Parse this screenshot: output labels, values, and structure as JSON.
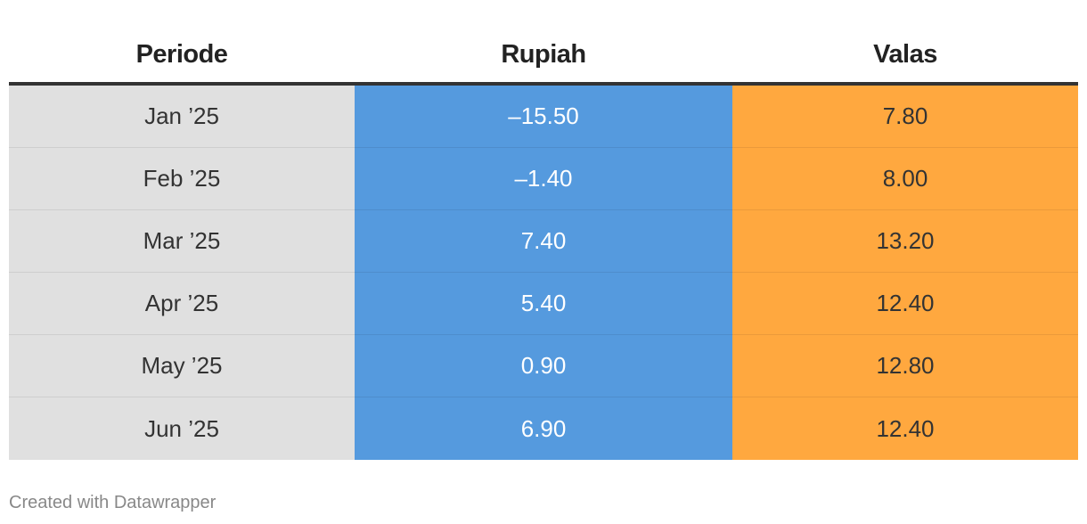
{
  "chart_data": {
    "type": "table",
    "columns": [
      "Periode",
      "Rupiah",
      "Valas"
    ],
    "rows": [
      {
        "periode": "Jan ’25",
        "rupiah": "–15.50",
        "valas": "7.80"
      },
      {
        "periode": "Feb ’25",
        "rupiah": "–1.40",
        "valas": "8.00"
      },
      {
        "periode": "Mar ’25",
        "rupiah": "7.40",
        "valas": "13.20"
      },
      {
        "periode": "Apr ’25",
        "rupiah": "5.40",
        "valas": "12.40"
      },
      {
        "periode": "May ’25",
        "rupiah": "0.90",
        "valas": "12.80"
      },
      {
        "periode": "Jun ’25",
        "rupiah": "6.90",
        "valas": "12.40"
      }
    ],
    "values": {
      "Rupiah": [
        -15.5,
        -1.4,
        7.4,
        5.4,
        0.9,
        6.9
      ],
      "Valas": [
        7.8,
        8.0,
        13.2,
        12.4,
        12.8,
        12.4
      ]
    },
    "column_colors": {
      "Periode": "#e0e0e0",
      "Rupiah": "#559ade",
      "Valas": "#ffa83f"
    }
  },
  "footer": {
    "credit": "Created with Datawrapper"
  }
}
